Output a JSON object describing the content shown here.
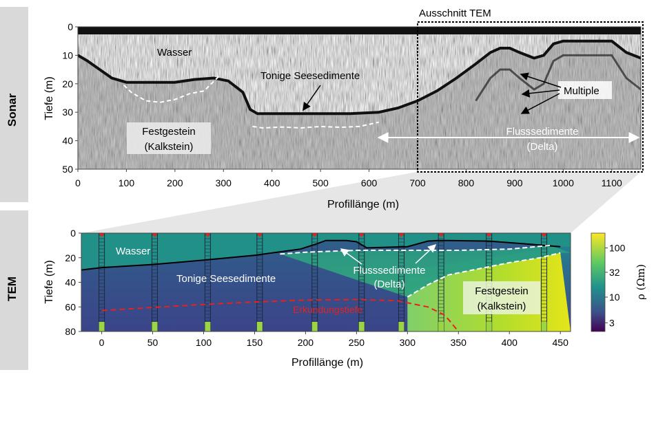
{
  "panels": {
    "sonar": "Sonar",
    "tem": "TEM"
  },
  "chart_data": [
    {
      "type": "heatmap",
      "title": "",
      "xlabel": "Profillänge (m)",
      "ylabel": "Tiefe (m)",
      "xlim": [
        0,
        1160
      ],
      "ylim": [
        50,
        0
      ],
      "xticks": [
        0,
        100,
        200,
        300,
        400,
        500,
        600,
        700,
        800,
        900,
        1000,
        1100
      ],
      "yticks": [
        0,
        10,
        20,
        30,
        40,
        50
      ],
      "colormap": "grayscale sonar backscatter",
      "seafloor": {
        "x": [
          0,
          20,
          45,
          70,
          100,
          160,
          200,
          240,
          280,
          310,
          340,
          355,
          370,
          420,
          500,
          560,
          620,
          660,
          700,
          740,
          780,
          820,
          850,
          870,
          890,
          910,
          940,
          960,
          980,
          1000,
          1050,
          1100,
          1130,
          1160
        ],
        "y": [
          10,
          12,
          15,
          18,
          19.5,
          19.5,
          19.5,
          18.5,
          18,
          19,
          23,
          29,
          30.5,
          30.5,
          30.5,
          30.5,
          30,
          28.5,
          26,
          22.5,
          18,
          13,
          9,
          7.5,
          7.5,
          9,
          11,
          10,
          6,
          5,
          5,
          5,
          9,
          11
        ]
      },
      "dashed_horizons": [
        {
          "x": [
            95,
            110,
            140,
            170,
            200,
            230,
            260,
            290
          ],
          "y": [
            20.5,
            23,
            26,
            26.5,
            25.5,
            23.5,
            22.5,
            17.5
          ]
        },
        {
          "x": [
            360,
            380,
            420,
            460,
            500,
            540,
            580,
            620
          ],
          "y": [
            35,
            35.5,
            35.2,
            35.5,
            35,
            35.3,
            35,
            33.5
          ]
        }
      ],
      "annotations": [
        {
          "text": "Wasser"
        },
        {
          "text": "Tonige Seesedimente"
        },
        {
          "text": "Festgestein"
        },
        {
          "text": "(Kalkstein)"
        },
        {
          "text": "Multiple"
        },
        {
          "text": "Flusssedimente"
        },
        {
          "text": "(Delta)"
        },
        {
          "text": "Ausschnitt  TEM"
        }
      ],
      "tem_window_x": [
        700,
        1160
      ],
      "delta_arrow_x": [
        620,
        1155
      ]
    },
    {
      "type": "heatmap",
      "title": "",
      "xlabel": "Profillänge (m)",
      "ylabel": "Tiefe (m)",
      "xlim": [
        -20,
        460
      ],
      "ylim": [
        80,
        0
      ],
      "xticks": [
        0,
        50,
        100,
        150,
        200,
        250,
        300,
        350,
        400,
        450
      ],
      "yticks": [
        0,
        20,
        40,
        60,
        80
      ],
      "colormap": "viridis (log)",
      "colorbar": {
        "label": "ρ (Ωm)",
        "ticks": [
          3,
          10,
          32,
          100
        ],
        "range": [
          2,
          200
        ]
      },
      "stations_x": [
        0,
        52,
        104,
        155,
        209,
        255,
        294,
        333,
        380,
        434
      ],
      "seafloor": {
        "x": [
          -20,
          0,
          50,
          100,
          150,
          195,
          210,
          220,
          240,
          250,
          260,
          300,
          320,
          330,
          340,
          380,
          420,
          450
        ],
        "y": [
          30,
          28,
          25.5,
          22,
          18,
          13,
          9,
          6,
          6,
          7,
          12,
          11,
          6.5,
          6,
          6,
          6.5,
          9,
          11
        ]
      },
      "exploration_depth": {
        "x": [
          0,
          50,
          100,
          150,
          200,
          250,
          290,
          320,
          335,
          340,
          345,
          350
        ],
        "y": [
          63,
          60.5,
          58,
          56,
          54.5,
          54,
          55,
          60,
          66,
          70,
          75,
          80
        ]
      },
      "dashed_horizons": [
        {
          "x": [
            175,
            200,
            250,
            300,
            350,
            400,
            440
          ],
          "y": [
            17,
            15.5,
            14,
            14,
            14,
            13,
            10
          ]
        },
        {
          "x": [
            300,
            320,
            340,
            370,
            400,
            430,
            450
          ],
          "y": [
            52,
            42,
            34,
            29,
            24,
            20,
            16
          ]
        }
      ],
      "labels": {
        "water": "Wasser",
        "clay": "Tonige Seesedimente",
        "delta_1": "Flusssedimente",
        "delta_2": "(Delta)",
        "bedrock_1": "Festgestein",
        "bedrock_2": "(Kalkstein)",
        "explore": "Erkundungstiefe"
      }
    }
  ]
}
